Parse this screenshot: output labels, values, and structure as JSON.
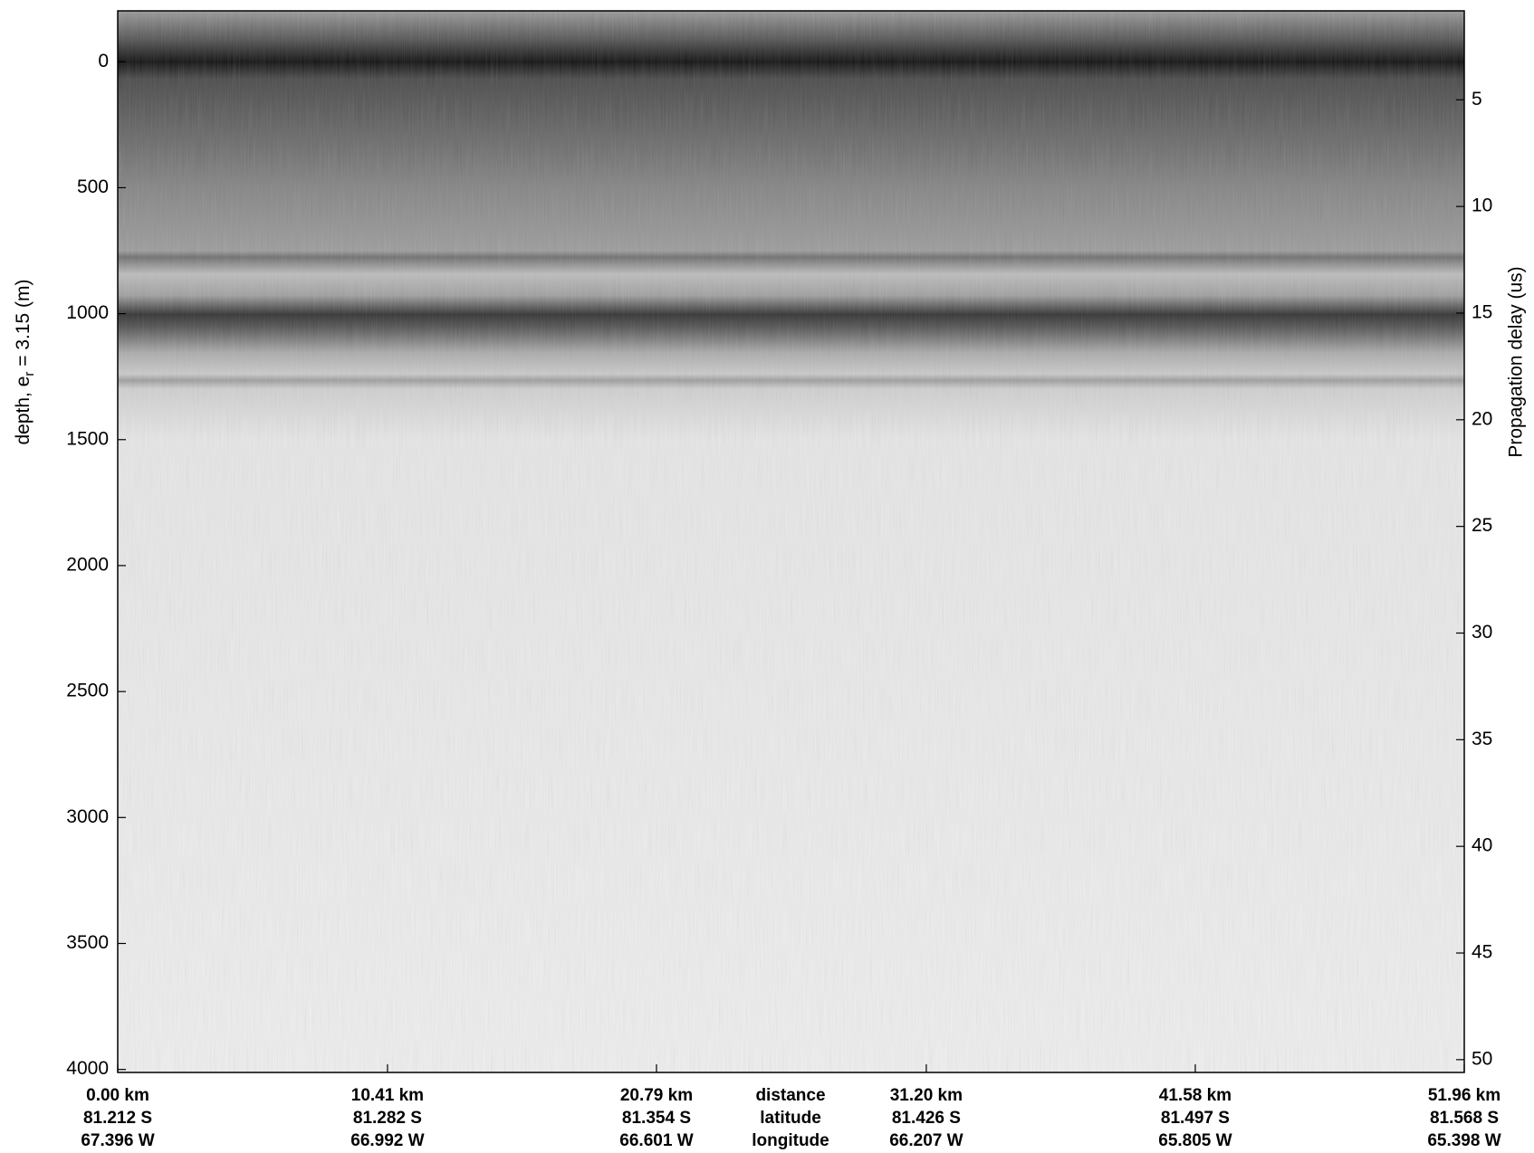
{
  "chart_data": {
    "type": "echogram",
    "ylabel": {
      "text": "depth, e",
      "sub": "r",
      "rest": " = 3.15 (m)"
    },
    "y2label": "Propagation delay (us)",
    "ylim": [
      -202,
      4012
    ],
    "yticks": [
      0,
      500,
      1000,
      1500,
      2000,
      2500,
      3000,
      3500,
      4000
    ],
    "y2lim": [
      0.83,
      50.6
    ],
    "y2ticks": [
      5,
      10,
      15,
      20,
      25,
      30,
      35,
      40,
      45,
      50
    ],
    "xlim": [
      0,
      51.96
    ],
    "xticks": [
      {
        "value": 0,
        "label": "0.00 km"
      },
      {
        "value": 10.41,
        "label": "10.41 km"
      },
      {
        "value": 20.79,
        "label": "20.79 km"
      },
      {
        "value": 31.2,
        "label": "31.20 km"
      },
      {
        "value": 41.58,
        "label": "41.58 km"
      },
      {
        "value": 51.96,
        "label": "51.96 km"
      }
    ],
    "latitude_labels": [
      "81.212 S",
      "81.282 S",
      "81.354 S",
      "81.426 S",
      "81.497 S",
      "81.568 S"
    ],
    "longitude_labels": [
      "67.396 W",
      "66.992 W",
      "66.601 W",
      "66.207 W",
      "65.805 W",
      "65.398 W"
    ],
    "row_names": [
      "distance",
      "latitude",
      "longitude"
    ]
  }
}
